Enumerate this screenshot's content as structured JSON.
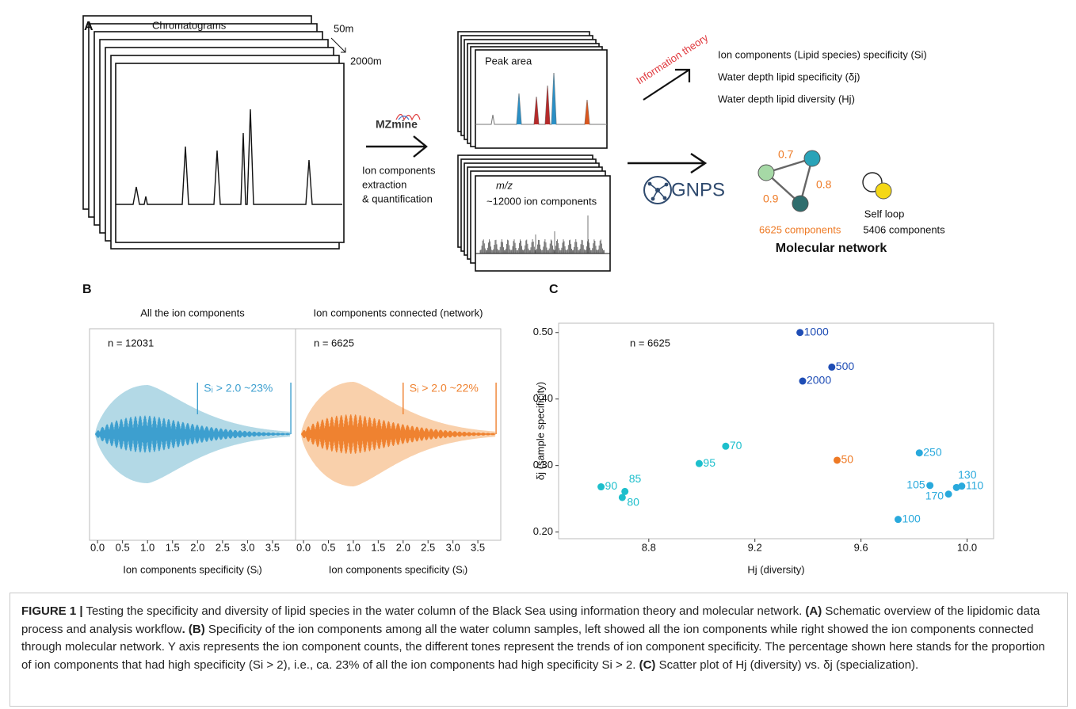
{
  "panel_a": {
    "label": "A",
    "chromatograms": "Chromatograms",
    "depth_top": "50m",
    "depth_bottom": "2000m",
    "software": "MZmine",
    "process": [
      "Ion components",
      "extraction",
      "& quantification"
    ],
    "peak_area": "Peak area",
    "mz": "m/z",
    "ion_count": "~12000 ion components",
    "method": "Information theory",
    "outputs": [
      "Ion components (Lipid species) specificity (Si)",
      "Water depth lipid specificity (δj)",
      "Water depth lipid diversity (Hj)"
    ],
    "network_tool": "GNPS",
    "edge_weights": [
      "0.7",
      "0.8",
      "0.9"
    ],
    "connected": "6625 components",
    "self_loop": "Self loop",
    "self_loop_count": "5406 components",
    "network_title": "Molecular network"
  },
  "panel_labels": {
    "b": "B",
    "c": "C"
  },
  "chart_data": [
    {
      "type": "violin",
      "title": "All the ion components",
      "n_label": "n = 12031",
      "annotation": "Sᵢ > 2.0  ~23%",
      "threshold": 2,
      "xlabel": "Ion components specificity (Sᵢ)",
      "xlim": [
        -0.16,
        3.96
      ],
      "xticks": [
        {
          "value": 0,
          "label": "0.0"
        },
        0.5,
        {
          "value": 1,
          "label": "1.0"
        },
        1.5,
        {
          "value": 2,
          "label": "2.0"
        },
        2.5,
        {
          "value": 3,
          "label": "3.0"
        },
        3.5
      ],
      "color": "#b3d9e6",
      "line_color": "#3d9fcf"
    },
    {
      "type": "violin",
      "title": "Ion components connected (network)",
      "n_label": "n = 6625",
      "annotation": "Sᵢ > 2.0  ~22%",
      "threshold": 2,
      "xlabel": "Ion components specificity (Sᵢ)",
      "xlim": [
        -0.16,
        3.96
      ],
      "xticks": [
        {
          "value": 0,
          "label": "0.0"
        },
        0.5,
        {
          "value": 1,
          "label": "1.0"
        },
        1.5,
        {
          "value": 2,
          "label": "2.0"
        },
        2.5,
        {
          "value": 3,
          "label": "3.0"
        },
        3.5
      ],
      "color": "#f9d0ab",
      "line_color": "#ef8230"
    },
    {
      "type": "scatter",
      "n_label": "n = 6625",
      "xlabel": "Hj  (diversity)",
      "ylabel": "δj (sample specificity)",
      "xlim": [
        8.46,
        10.1
      ],
      "ylim": [
        0.19,
        0.514
      ],
      "xticks": [
        8.8,
        9.2,
        9.6,
        {
          "value": 10,
          "label": "10.0"
        }
      ],
      "yticks": [
        {
          "value": 0.2,
          "label": "0.20"
        },
        {
          "value": 0.3,
          "label": "0.30"
        },
        {
          "value": 0.4,
          "label": "0.40"
        },
        {
          "value": 0.5,
          "label": "0.50"
        }
      ],
      "point_labels": [
        "1000",
        "500",
        "2000",
        "70",
        "50",
        "95",
        "250",
        "90",
        "85",
        "80",
        "105",
        "130",
        "110",
        "170",
        "100"
      ],
      "x": [
        9.37,
        9.49,
        9.38,
        9.09,
        9.51,
        8.99,
        9.82,
        8.62,
        8.71,
        8.7,
        9.86,
        9.96,
        9.98,
        9.93,
        9.74
      ],
      "y": [
        0.5,
        0.448,
        0.427,
        0.329,
        0.308,
        0.303,
        0.319,
        0.268,
        0.261,
        0.252,
        0.27,
        0.267,
        0.269,
        0.257,
        0.219
      ],
      "colors": [
        "#1f4db5",
        "#1f4db5",
        "#1f4db5",
        "#1dbfcc",
        "#ee7a25",
        "#1dbfcc",
        "#29a9dc",
        "#1dbfcc",
        "#1dbfcc",
        "#1dbfcc",
        "#29a9dc",
        "#29a9dc",
        "#29a9dc",
        "#29a9dc",
        "#29a9dc"
      ]
    }
  ],
  "caption": [
    {
      "text": "FIGURE 1 |",
      "bold": true
    },
    {
      "text": " Testing the specificity and diversity of lipid species in the water column of the Black Sea using information theory and molecular network. "
    },
    {
      "text": "(A)",
      "bold": true
    },
    {
      "text": " Schematic overview of the lipidomic data process and analysis workflow"
    },
    {
      "text": ". (B)",
      "bold": true
    },
    {
      "text": " Specificity of the ion components among all the water column samples, left showed all the ion components while right showed the ion components connected through molecular network. Y axis represents the ion component counts, the different tones represent the trends of ion component specificity. The percentage shown here stands for the proportion of ion components that had high specificity (Si > 2), i.e., ca. 23% of all the ion components had high specificity Si > 2. "
    },
    {
      "text": "(C)",
      "bold": true
    },
    {
      "text": " Scatter plot of Hj (diversity) vs. δj (specialization)."
    }
  ]
}
